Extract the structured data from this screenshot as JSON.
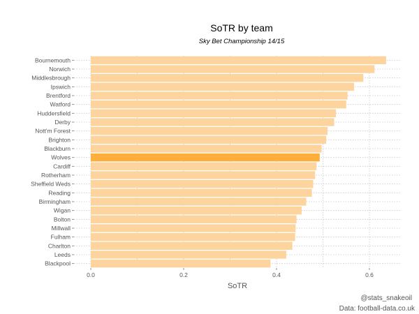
{
  "chart_data": {
    "type": "bar",
    "orientation": "horizontal",
    "title": "SoTR by team",
    "subtitle": "Sky Bet Championship 14/15",
    "xlabel": "SoTR",
    "ylabel": "",
    "xlim": [
      0,
      0.66
    ],
    "xticks": [
      "0.0",
      "0.2",
      "0.4",
      "0.6"
    ],
    "grid": true,
    "categories": [
      "Bournemouth",
      "Norwich",
      "Middlesbrough",
      "Ipswich",
      "Brentford",
      "Watford",
      "Huddersfield",
      "Derby",
      "Nott'm Forest",
      "Brighton",
      "Blackburn",
      "Wolves",
      "Cardiff",
      "Rotherham",
      "Sheffield Weds",
      "Reading",
      "Birmingham",
      "Wigan",
      "Bolton",
      "Millwall",
      "Fulham",
      "Charlton",
      "Leeds",
      "Blackpool"
    ],
    "values": [
      0.636,
      0.611,
      0.587,
      0.567,
      0.553,
      0.55,
      0.528,
      0.524,
      0.51,
      0.507,
      0.497,
      0.493,
      0.486,
      0.483,
      0.479,
      0.476,
      0.464,
      0.454,
      0.443,
      0.441,
      0.44,
      0.434,
      0.421,
      0.387
    ],
    "highlight": "Wolves",
    "colors": {
      "bar": "#fdd49e",
      "highlight": "#fdae3b",
      "grid": "#c8c8c8",
      "tick_text": "#555555"
    }
  },
  "credits": {
    "author": "@stats_snakeoil",
    "source": "Data: football-data.co.uk"
  }
}
